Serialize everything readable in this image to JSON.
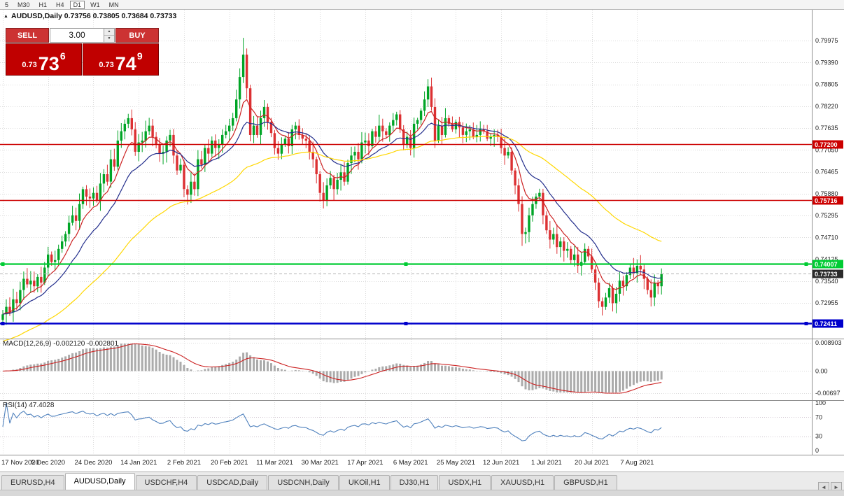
{
  "toolbar": {
    "timeframes": [
      "5",
      "M30",
      "H1",
      "H4",
      "D1",
      "W1",
      "MN"
    ],
    "active": "D1"
  },
  "chart": {
    "title_line": "AUDUSD,Daily 0.73756 0.73805 0.73684 0.73733"
  },
  "icons": {
    "chart_arrow": "▲",
    "spin_up": "▲",
    "spin_down": "▼",
    "tabs_left": "◄",
    "tabs_right": "►"
  },
  "trade_panel": {
    "sell_label": "SELL",
    "buy_label": "BUY",
    "volume": "3.00",
    "sell_price": {
      "prefix": "0.73",
      "big": "73",
      "sup": "6"
    },
    "buy_price": {
      "prefix": "0.73",
      "big": "74",
      "sup": "9"
    }
  },
  "indicators": {
    "macd": {
      "label": "MACD(12,26,9) -0.002120 -0.002801"
    },
    "rsi": {
      "label": "RSI(14) 47.4028"
    }
  },
  "axes": {
    "price_labels": [
      "0.79975",
      "0.79390",
      "0.78805",
      "0.78220",
      "0.77635",
      "0.77050",
      "0.76465",
      "0.75880",
      "0.75295",
      "0.74710",
      "0.74125",
      "0.73540",
      "0.72955"
    ],
    "macd_labels": [
      "0.008903",
      "0.00",
      "-0.00697"
    ],
    "rsi_labels": [
      "100",
      "70",
      "30",
      "0"
    ]
  },
  "current_price_label": "0.73733",
  "colors": {
    "candle_up": "#00a526",
    "candle_down": "#dc3032",
    "macd_hist": "#ababab",
    "macd_signal": "#cc2222",
    "rsi": "#4f81bd",
    "current_badge": "#2b2b2b"
  },
  "tabs": {
    "labels": [
      "EURUSD,H4",
      "AUDUSD,Daily",
      "USDCHF,H4",
      "USDCAD,Daily",
      "USDCNH,Daily",
      "UKOil,H1",
      "DJ30,H1",
      "USDX,H1",
      "XAUUSD,H1",
      "GBPUSD,H1"
    ],
    "active_index": 1
  },
  "chart_data": {
    "type": "candlestick",
    "symbol": "AUDUSD",
    "timeframe": "Daily",
    "title": "AUDUSD,Daily",
    "ohlc_current": {
      "open": 0.73756,
      "high": 0.73805,
      "low": 0.73684,
      "close": 0.73733
    },
    "ylim": [
      0.72,
      0.808
    ],
    "x_tick_dates": [
      "17 Nov 2020",
      "5 Dec 2020",
      "24 Dec 2020",
      "14 Jan 2021",
      "2 Feb 2021",
      "20 Feb 2021",
      "11 Mar 2021",
      "30 Mar 2021",
      "17 Apr 2021",
      "6 May 2021",
      "25 May 2021",
      "12 Jun 2021",
      "1 Jul 2021",
      "20 Jul 2021",
      "7 Aug 2021"
    ],
    "candles_per_tick": 13,
    "open_first": 0.725,
    "closes": [
      0.7265,
      0.7285,
      0.727,
      0.7305,
      0.7295,
      0.733,
      0.736,
      0.7345,
      0.7355,
      0.734,
      0.7365,
      0.735,
      0.739,
      0.7425,
      0.7405,
      0.741,
      0.744,
      0.746,
      0.748,
      0.751,
      0.753,
      0.7515,
      0.756,
      0.76,
      0.758,
      0.7575,
      0.759,
      0.757,
      0.7615,
      0.764,
      0.762,
      0.768,
      0.766,
      0.773,
      0.7755,
      0.7775,
      0.779,
      0.776,
      0.77,
      0.7725,
      0.773,
      0.7755,
      0.777,
      0.774,
      0.772,
      0.7695,
      0.77,
      0.773,
      0.7745,
      0.769,
      0.765,
      0.7665,
      0.76,
      0.7585,
      0.762,
      0.76,
      0.768,
      0.7665,
      0.771,
      0.7695,
      0.773,
      0.771,
      0.772,
      0.7745,
      0.7755,
      0.777,
      0.779,
      0.784,
      0.79,
      0.796,
      0.787,
      0.7745,
      0.777,
      0.7745,
      0.779,
      0.782,
      0.778,
      0.775,
      0.771,
      0.7695,
      0.772,
      0.7735,
      0.7715,
      0.776,
      0.777,
      0.7745,
      0.7735,
      0.773,
      0.77,
      0.768,
      0.764,
      0.759,
      0.757,
      0.761,
      0.763,
      0.76,
      0.7625,
      0.7645,
      0.762,
      0.767,
      0.769,
      0.77,
      0.768,
      0.7725,
      0.773,
      0.7715,
      0.7755,
      0.774,
      0.777,
      0.7755,
      0.7745,
      0.777,
      0.7785,
      0.78,
      0.776,
      0.772,
      0.774,
      0.771,
      0.7775,
      0.7785,
      0.781,
      0.784,
      0.7875,
      0.782,
      0.773,
      0.777,
      0.7745,
      0.779,
      0.7775,
      0.776,
      0.778,
      0.7765,
      0.7745,
      0.7755,
      0.776,
      0.774,
      0.7745,
      0.776,
      0.7755,
      0.7735,
      0.774,
      0.7745,
      0.774,
      0.771,
      0.769,
      0.77,
      0.765,
      0.761,
      0.756,
      0.748,
      0.7485,
      0.753,
      0.756,
      0.758,
      0.759,
      0.753,
      0.749,
      0.7465,
      0.748,
      0.7445,
      0.746,
      0.7435,
      0.744,
      0.741,
      0.7425,
      0.7395,
      0.7405,
      0.744,
      0.742,
      0.7385,
      0.735,
      0.73,
      0.7285,
      0.731,
      0.7335,
      0.7295,
      0.732,
      0.7355,
      0.734,
      0.737,
      0.739,
      0.7375,
      0.7395,
      0.7385,
      0.736,
      0.733,
      0.731,
      0.735,
      0.734,
      0.7373
    ],
    "high_overrides": {
      "69": 0.8005,
      "182": 0.7412
    },
    "low_overrides": {
      "172": 0.7262,
      "149": 0.7448
    },
    "horizontal_lines": [
      {
        "price": 0.772,
        "label": "0.77200",
        "color": "#cc0000",
        "width": 1.6,
        "handles": false
      },
      {
        "price": 0.75716,
        "label": "0.75716",
        "color": "#cc0000",
        "width": 1.6,
        "handles": false
      },
      {
        "price": 0.74007,
        "label": "0.74007",
        "color": "#00cc33",
        "width": 2.2,
        "handles": true
      },
      {
        "price": 0.72411,
        "label": "0.72411",
        "color": "#0000cc",
        "width": 2.5,
        "handles": true
      }
    ],
    "current_price": 0.73733,
    "moving_averages": [
      {
        "name": "fast",
        "period": 8,
        "color": "#cc2222"
      },
      {
        "name": "mid",
        "period": 18,
        "color": "#232e8c"
      },
      {
        "name": "slow",
        "period": 55,
        "color": "#ffd700",
        "seed": 0.719
      }
    ],
    "indicators": {
      "macd": {
        "fast": 12,
        "slow": 26,
        "signal": 9,
        "scale_max": 0.008903,
        "scale_min": -0.00697
      },
      "rsi": {
        "period": 14,
        "value": 47.4028,
        "levels": [
          70,
          30
        ]
      }
    }
  }
}
